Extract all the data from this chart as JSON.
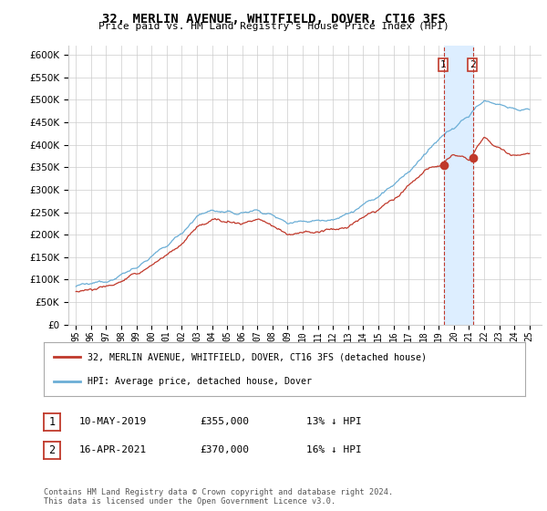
{
  "title": "32, MERLIN AVENUE, WHITFIELD, DOVER, CT16 3FS",
  "subtitle": "Price paid vs. HM Land Registry's House Price Index (HPI)",
  "hpi_color": "#6baed6",
  "price_color": "#c0392b",
  "vline_color": "#c0392b",
  "shade_color": "#ddeeff",
  "ylim": [
    0,
    620000
  ],
  "yticks": [
    0,
    50000,
    100000,
    150000,
    200000,
    250000,
    300000,
    350000,
    400000,
    450000,
    500000,
    550000,
    600000
  ],
  "legend1_label": "32, MERLIN AVENUE, WHITFIELD, DOVER, CT16 3FS (detached house)",
  "legend2_label": "HPI: Average price, detached house, Dover",
  "transaction1_date": "10-MAY-2019",
  "transaction1_price": "£355,000",
  "transaction1_hpi": "13% ↓ HPI",
  "transaction2_date": "16-APR-2021",
  "transaction2_price": "£370,000",
  "transaction2_hpi": "16% ↓ HPI",
  "footer": "Contains HM Land Registry data © Crown copyright and database right 2024.\nThis data is licensed under the Open Government Licence v3.0.",
  "background": "#ffffff",
  "grid_color": "#cccccc",
  "transaction1_x": 2019.36,
  "transaction2_x": 2021.29,
  "transaction1_y": 355000,
  "transaction2_y": 370000,
  "xmin": 1994.5,
  "xmax": 2025.8,
  "hpi_keypoints_x": [
    1995,
    1996,
    1997,
    1998,
    1999,
    2000,
    2001,
    2002,
    2003,
    2004,
    2005,
    2006,
    2007,
    2008,
    2009,
    2010,
    2011,
    2012,
    2013,
    2014,
    2015,
    2016,
    2017,
    2018,
    2019,
    2020,
    2021,
    2022,
    2023,
    2024,
    2025
  ],
  "hpi_keypoints_y": [
    85000,
    90000,
    98000,
    110000,
    128000,
    150000,
    175000,
    205000,
    240000,
    255000,
    248000,
    248000,
    255000,
    242000,
    228000,
    230000,
    232000,
    235000,
    245000,
    265000,
    285000,
    310000,
    340000,
    375000,
    410000,
    440000,
    465000,
    500000,
    490000,
    480000,
    475000
  ],
  "price_keypoints_x": [
    1995,
    1996,
    1997,
    1998,
    1999,
    2000,
    2001,
    2002,
    2003,
    2004,
    2005,
    2006,
    2007,
    2008,
    2009,
    2010,
    2011,
    2012,
    2013,
    2014,
    2015,
    2016,
    2017,
    2018,
    2019,
    2020,
    2021,
    2022,
    2023,
    2024,
    2025
  ],
  "price_keypoints_y": [
    75000,
    78000,
    85000,
    95000,
    112000,
    132000,
    155000,
    180000,
    215000,
    235000,
    228000,
    225000,
    235000,
    220000,
    200000,
    205000,
    205000,
    210000,
    218000,
    238000,
    255000,
    278000,
    310000,
    340000,
    355000,
    375000,
    370000,
    415000,
    395000,
    375000,
    380000
  ],
  "xtick_labels": [
    "95",
    "96",
    "97",
    "98",
    "99",
    "00",
    "01",
    "02",
    "03",
    "04",
    "05",
    "06",
    "07",
    "08",
    "09",
    "10",
    "11",
    "12",
    "13",
    "14",
    "15",
    "16",
    "17",
    "18",
    "19",
    "20",
    "21",
    "22",
    "23",
    "24",
    "25"
  ],
  "xticks": [
    1995,
    1996,
    1997,
    1998,
    1999,
    2000,
    2001,
    2002,
    2003,
    2004,
    2005,
    2006,
    2007,
    2008,
    2009,
    2010,
    2011,
    2012,
    2013,
    2014,
    2015,
    2016,
    2017,
    2018,
    2019,
    2020,
    2021,
    2022,
    2023,
    2024,
    2025
  ]
}
